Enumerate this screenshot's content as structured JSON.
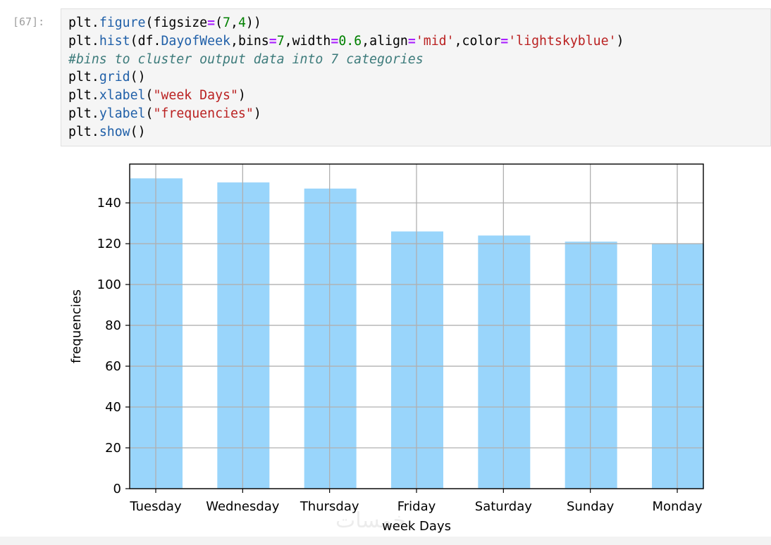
{
  "cell": {
    "prompt": "[67]:",
    "code_lines": [
      [
        {
          "t": "plt",
          "c": "nm"
        },
        {
          "t": ".",
          "c": "nm"
        },
        {
          "t": "figure",
          "c": "at"
        },
        {
          "t": "(figsize",
          "c": "nm"
        },
        {
          "t": "=",
          "c": "op"
        },
        {
          "t": "(",
          "c": "nm"
        },
        {
          "t": "7",
          "c": "nu"
        },
        {
          "t": ",",
          "c": "nm"
        },
        {
          "t": "4",
          "c": "nu"
        },
        {
          "t": "))",
          "c": "nm"
        }
      ],
      [
        {
          "t": "plt",
          "c": "nm"
        },
        {
          "t": ".",
          "c": "nm"
        },
        {
          "t": "hist",
          "c": "at"
        },
        {
          "t": "(df",
          "c": "nm"
        },
        {
          "t": ".",
          "c": "nm"
        },
        {
          "t": "DayofWeek",
          "c": "at"
        },
        {
          "t": ",bins",
          "c": "nm"
        },
        {
          "t": "=",
          "c": "op"
        },
        {
          "t": "7",
          "c": "nu"
        },
        {
          "t": ",width",
          "c": "nm"
        },
        {
          "t": "=",
          "c": "op"
        },
        {
          "t": "0.6",
          "c": "nu"
        },
        {
          "t": ",align",
          "c": "nm"
        },
        {
          "t": "=",
          "c": "op"
        },
        {
          "t": "'mid'",
          "c": "st"
        },
        {
          "t": ",color",
          "c": "nm"
        },
        {
          "t": "=",
          "c": "op"
        },
        {
          "t": "'lightskyblue'",
          "c": "st"
        },
        {
          "t": ")",
          "c": "nm"
        }
      ],
      [
        {
          "t": "#bins to cluster output data into 7 categories",
          "c": "cm"
        }
      ],
      [
        {
          "t": "plt",
          "c": "nm"
        },
        {
          "t": ".",
          "c": "nm"
        },
        {
          "t": "grid",
          "c": "at"
        },
        {
          "t": "()",
          "c": "nm"
        }
      ],
      [
        {
          "t": "plt",
          "c": "nm"
        },
        {
          "t": ".",
          "c": "nm"
        },
        {
          "t": "xlabel",
          "c": "at"
        },
        {
          "t": "(",
          "c": "nm"
        },
        {
          "t": "\"week Days\"",
          "c": "st"
        },
        {
          "t": ")",
          "c": "nm"
        }
      ],
      [
        {
          "t": "plt",
          "c": "nm"
        },
        {
          "t": ".",
          "c": "nm"
        },
        {
          "t": "ylabel",
          "c": "at"
        },
        {
          "t": "(",
          "c": "nm"
        },
        {
          "t": "\"frequencies\"",
          "c": "st"
        },
        {
          "t": ")",
          "c": "nm"
        }
      ],
      [
        {
          "t": "plt",
          "c": "nm"
        },
        {
          "t": ".",
          "c": "nm"
        },
        {
          "t": "show",
          "c": "at"
        },
        {
          "t": "()",
          "c": "nm"
        }
      ]
    ]
  },
  "chart_data": {
    "type": "bar",
    "title": "",
    "xlabel": "week Days",
    "ylabel": "frequencies",
    "categories": [
      "Tuesday",
      "Wednesday",
      "Thursday",
      "Friday",
      "Saturday",
      "Sunday",
      "Monday"
    ],
    "values": [
      152,
      150,
      147,
      126,
      124,
      121,
      120
    ],
    "ylim": [
      0,
      159
    ],
    "yticks": [
      0,
      20,
      40,
      60,
      80,
      100,
      120,
      140
    ],
    "grid": true,
    "bar_color": "#87cefa",
    "grid_color": "#b0b0b0"
  },
  "watermark": "خمسات"
}
